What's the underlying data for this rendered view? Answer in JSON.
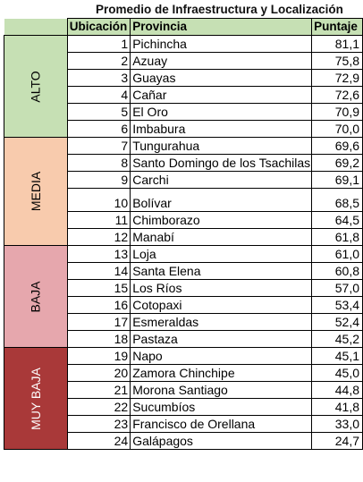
{
  "title": "Promedio de Infraestructura y Localización",
  "headers": {
    "ubicacion": "Ubicación",
    "provincia": "Provincia",
    "puntaje": "Puntaje"
  },
  "categories": [
    {
      "label": "ALTO",
      "color": "#c6e0b4",
      "text_color": "#000000"
    },
    {
      "label": "MEDIA",
      "color": "#f8cbad",
      "text_color": "#000000"
    },
    {
      "label": "BAJA",
      "color": "#e6a7ad",
      "text_color": "#000000"
    },
    {
      "label": "MUY BAJA",
      "color": "#a93939",
      "text_color": "#ffffff"
    }
  ],
  "rows": [
    {
      "ubicacion": "1",
      "provincia": "Pichincha",
      "puntaje": "81,1"
    },
    {
      "ubicacion": "2",
      "provincia": "Azuay",
      "puntaje": "75,8"
    },
    {
      "ubicacion": "3",
      "provincia": "Guayas",
      "puntaje": "72,9"
    },
    {
      "ubicacion": "4",
      "provincia": "Cañar",
      "puntaje": "72,6"
    },
    {
      "ubicacion": "5",
      "provincia": "El Oro",
      "puntaje": "70,9"
    },
    {
      "ubicacion": "6",
      "provincia": "Imbabura",
      "puntaje": "70,0"
    },
    {
      "ubicacion": "7",
      "provincia": "Tungurahua",
      "puntaje": "69,6"
    },
    {
      "ubicacion": "8",
      "provincia": "Santo Domingo de los Tsachilas",
      "puntaje": "69,2"
    },
    {
      "ubicacion": "9",
      "provincia": "Carchi",
      "puntaje": "69,1"
    },
    {
      "ubicacion": "10",
      "provincia": "Bolívar",
      "puntaje": "68,5"
    },
    {
      "ubicacion": "11",
      "provincia": "Chimborazo",
      "puntaje": "64,5"
    },
    {
      "ubicacion": "12",
      "provincia": "Manabí",
      "puntaje": "61,8"
    },
    {
      "ubicacion": "13",
      "provincia": "Loja",
      "puntaje": "61,0"
    },
    {
      "ubicacion": "14",
      "provincia": "Santa Elena",
      "puntaje": "60,8"
    },
    {
      "ubicacion": "15",
      "provincia": "Los Ríos",
      "puntaje": "57,0"
    },
    {
      "ubicacion": "16",
      "provincia": "Cotopaxi",
      "puntaje": "53,4"
    },
    {
      "ubicacion": "17",
      "provincia": "Esmeraldas",
      "puntaje": "52,4"
    },
    {
      "ubicacion": "18",
      "provincia": "Pastaza",
      "puntaje": "45,2"
    },
    {
      "ubicacion": "19",
      "provincia": "Napo",
      "puntaje": "45,1"
    },
    {
      "ubicacion": "20",
      "provincia": "Zamora Chinchipe",
      "puntaje": "45,0"
    },
    {
      "ubicacion": "21",
      "provincia": "Morona Santiago",
      "puntaje": "44,8"
    },
    {
      "ubicacion": "22",
      "provincia": "Sucumbíos",
      "puntaje": "41,8"
    },
    {
      "ubicacion": "23",
      "provincia": "Francisco de Orellana",
      "puntaje": "33,0"
    },
    {
      "ubicacion": "24",
      "provincia": "Galápagos",
      "puntaje": "24,7"
    }
  ]
}
